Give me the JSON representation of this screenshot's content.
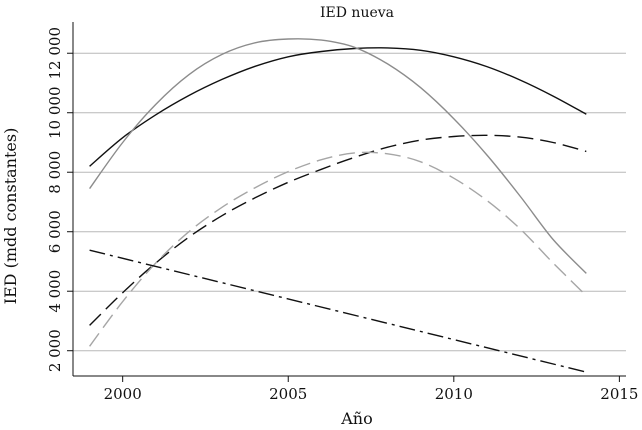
{
  "chart_data": {
    "type": "line",
    "title": "IED nueva",
    "xlabel": "Año",
    "ylabel": "IED (mdd constantes)",
    "xlim": [
      1998.5,
      2015.2
    ],
    "ylim": [
      1150,
      13050
    ],
    "xticks": [
      2000,
      2005,
      2010,
      2015
    ],
    "xtick_labels": [
      "2000",
      "2005",
      "2010",
      "2015"
    ],
    "yticks": [
      2000,
      4000,
      6000,
      8000,
      10000,
      12000
    ],
    "ytick_labels": [
      "2 000",
      "4 000",
      "6 000",
      "8 000",
      "10 000",
      "12 000"
    ],
    "grid": "horizontal",
    "legend": "none",
    "series": [
      {
        "color": "#111111",
        "dash": "solid",
        "x": [
          1999,
          2000,
          2001,
          2002,
          2003,
          2004,
          2005,
          2006,
          2007,
          2008,
          2009,
          2010,
          2011,
          2012,
          2013,
          2014
        ],
        "values": [
          8200,
          9160,
          9930,
          10580,
          11120,
          11560,
          11880,
          12060,
          12160,
          12180,
          12100,
          11880,
          11550,
          11100,
          10560,
          9950
        ]
      },
      {
        "color": "#8c8c8c",
        "dash": "solid",
        "x": [
          1999,
          2000,
          2001,
          2002,
          2003,
          2004,
          2005,
          2006,
          2007,
          2008,
          2009,
          2010,
          2011,
          2012,
          2013,
          2014
        ],
        "values": [
          7450,
          9000,
          10280,
          11280,
          11960,
          12350,
          12480,
          12440,
          12200,
          11640,
          10840,
          9800,
          8580,
          7200,
          5740,
          4600
        ]
      },
      {
        "color": "#111111",
        "dash": "long-dash",
        "x": [
          1999,
          2000,
          2001,
          2002,
          2003,
          2004,
          2005,
          2006,
          2007,
          2008,
          2009,
          2010,
          2011,
          2012,
          2013,
          2014
        ],
        "values": [
          2850,
          3950,
          4950,
          5820,
          6540,
          7140,
          7660,
          8100,
          8500,
          8840,
          9080,
          9200,
          9240,
          9180,
          9000,
          8700
        ]
      },
      {
        "color": "#a6a6a6",
        "dash": "long-dash",
        "x": [
          1999,
          2000,
          2001,
          2002,
          2003,
          2004,
          2005,
          2006,
          2007,
          2008,
          2009,
          2010,
          2011,
          2012,
          2013,
          2014
        ],
        "values": [
          2150,
          3650,
          4950,
          6000,
          6820,
          7480,
          8020,
          8420,
          8650,
          8620,
          8350,
          7800,
          7050,
          6100,
          4950,
          3850
        ]
      },
      {
        "color": "#111111",
        "dash": "dash-dot",
        "x": [
          1999,
          2014
        ],
        "values": [
          5380,
          1280
        ]
      }
    ]
  }
}
